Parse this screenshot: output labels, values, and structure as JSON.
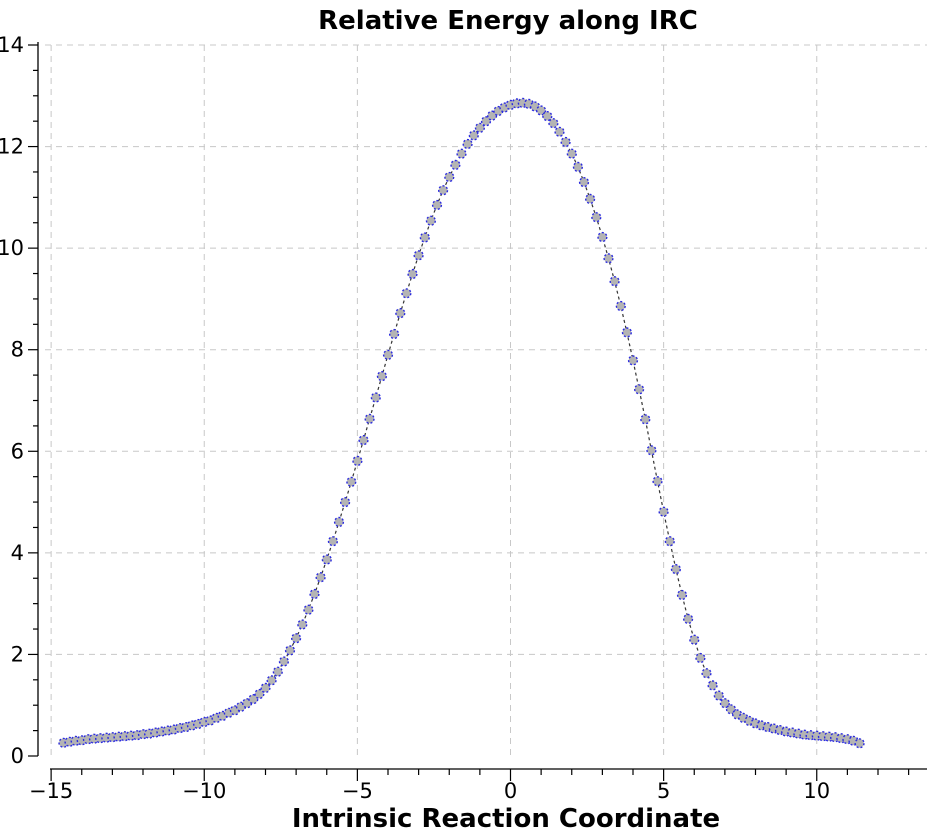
{
  "chart_data": {
    "type": "scatter",
    "title": "Relative Energy along IRC",
    "xlabel": "Intrinsic Reaction Coordinate",
    "ylabel": "",
    "xlim": [
      -15.2,
      13.6
    ],
    "ylim": [
      0,
      14
    ],
    "xticks": [
      -15,
      -10,
      -5,
      0,
      5,
      10
    ],
    "xtick_labels": [
      "−15",
      "−10",
      "−5",
      "0",
      "5",
      "10"
    ],
    "yticks": [
      0,
      2,
      4,
      6,
      8,
      10,
      12,
      14
    ],
    "ytick_labels": [
      "0",
      "2",
      "4",
      "6",
      "8",
      "10",
      "12",
      "14"
    ],
    "grid": true,
    "series": [
      {
        "name": "Relative Energy",
        "x_start": -14.6,
        "x_step": 0.2,
        "values": [
          0.26,
          0.28,
          0.3,
          0.31,
          0.33,
          0.34,
          0.35,
          0.36,
          0.37,
          0.38,
          0.39,
          0.4,
          0.41,
          0.43,
          0.44,
          0.46,
          0.48,
          0.5,
          0.52,
          0.55,
          0.57,
          0.6,
          0.63,
          0.67,
          0.7,
          0.75,
          0.79,
          0.85,
          0.9,
          0.97,
          1.04,
          1.12,
          1.22,
          1.34,
          1.49,
          1.66,
          1.86,
          2.08,
          2.32,
          2.59,
          2.88,
          3.19,
          3.52,
          3.87,
          4.23,
          4.61,
          5.0,
          5.4,
          5.81,
          6.22,
          6.64,
          7.06,
          7.48,
          7.9,
          8.31,
          8.72,
          9.11,
          9.49,
          9.86,
          10.21,
          10.54,
          10.85,
          11.14,
          11.4,
          11.64,
          11.86,
          12.05,
          12.22,
          12.37,
          12.5,
          12.61,
          12.7,
          12.77,
          12.82,
          12.85,
          12.86,
          12.84,
          12.79,
          12.71,
          12.6,
          12.46,
          12.29,
          12.09,
          11.86,
          11.6,
          11.3,
          10.97,
          10.61,
          10.22,
          9.8,
          9.35,
          8.86,
          8.34,
          7.79,
          7.22,
          6.63,
          6.02,
          5.41,
          4.81,
          4.23,
          3.68,
          3.17,
          2.7,
          2.29,
          1.93,
          1.63,
          1.39,
          1.19,
          1.04,
          0.92,
          0.82,
          0.75,
          0.69,
          0.64,
          0.6,
          0.57,
          0.54,
          0.51,
          0.48,
          0.46,
          0.44,
          0.42,
          0.41,
          0.4,
          0.39,
          0.38,
          0.37,
          0.35,
          0.33,
          0.3,
          0.25
        ]
      }
    ]
  }
}
